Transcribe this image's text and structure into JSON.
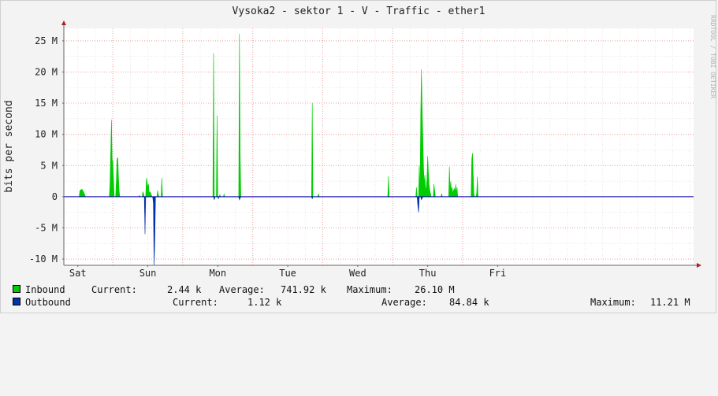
{
  "chart_data": {
    "type": "area",
    "title": "Vysoka2 - sektor 1 - V - Traffic - ether1",
    "ylabel": "bits per second",
    "watermark": "RRDTOOL / TOBI OETIKER",
    "ylim": [
      -11,
      27
    ],
    "yticks": [
      {
        "v": 25,
        "label": "25 M"
      },
      {
        "v": 20,
        "label": "20 M"
      },
      {
        "v": 15,
        "label": "15 M"
      },
      {
        "v": 10,
        "label": "10 M"
      },
      {
        "v": 5,
        "label": "5 M"
      },
      {
        "v": 0,
        "label": "0"
      },
      {
        "v": -5,
        "label": "-5 M"
      },
      {
        "v": -10,
        "label": "-10 M"
      }
    ],
    "xlim": [
      -2.2,
      6.8
    ],
    "xticks": [
      {
        "v": -2,
        "label": "Sat"
      },
      {
        "v": -1,
        "label": "Sun"
      },
      {
        "v": 0,
        "label": "Mon"
      },
      {
        "v": 1,
        "label": "Tue"
      },
      {
        "v": 2,
        "label": "Wed"
      },
      {
        "v": 3,
        "label": "Thu"
      },
      {
        "v": 4,
        "label": "Fri"
      }
    ],
    "grid": true,
    "series": [
      {
        "name": "Inbound",
        "color": "#00cc00",
        "points": [
          [
            -1.98,
            0
          ],
          [
            -1.97,
            1.0
          ],
          [
            -1.94,
            1.2
          ],
          [
            -1.92,
            0.8
          ],
          [
            -1.9,
            0.3
          ],
          [
            -1.89,
            0
          ],
          [
            -1.55,
            0
          ],
          [
            -1.54,
            2.0
          ],
          [
            -1.52,
            12.3
          ],
          [
            -1.51,
            6.0
          ],
          [
            -1.5,
            5.5
          ],
          [
            -1.49,
            3.0
          ],
          [
            -1.48,
            0
          ],
          [
            -1.46,
            0
          ],
          [
            -1.45,
            2.5
          ],
          [
            -1.44,
            6.0
          ],
          [
            -1.43,
            6.3
          ],
          [
            -1.42,
            3.5
          ],
          [
            -1.41,
            1.0
          ],
          [
            -1.4,
            0
          ],
          [
            -1.13,
            0
          ],
          [
            -1.12,
            0.2
          ],
          [
            -1.11,
            0
          ],
          [
            -1.08,
            0
          ],
          [
            -1.07,
            0.8
          ],
          [
            -1.06,
            0.5
          ],
          [
            -1.05,
            0
          ],
          [
            -1.03,
            0
          ],
          [
            -1.02,
            3.0
          ],
          [
            -1.01,
            2.5
          ],
          [
            -1.0,
            1.5
          ],
          [
            -0.99,
            2.0
          ],
          [
            -0.98,
            0.5
          ],
          [
            -0.97,
            0.8
          ],
          [
            -0.96,
            0.6
          ],
          [
            -0.95,
            0.3
          ],
          [
            -0.94,
            0
          ],
          [
            -0.87,
            0
          ],
          [
            -0.86,
            1.0
          ],
          [
            -0.85,
            0.3
          ],
          [
            -0.84,
            0
          ],
          [
            -0.81,
            0
          ],
          [
            -0.8,
            3.0
          ],
          [
            -0.79,
            0
          ],
          [
            -0.07,
            0
          ],
          [
            -0.06,
            23.0
          ],
          [
            -0.05,
            0
          ],
          [
            -0.02,
            0
          ],
          [
            -0.01,
            13.0
          ],
          [
            0.0,
            0
          ],
          [
            0.02,
            0
          ],
          [
            0.03,
            0.3
          ],
          [
            0.04,
            0
          ],
          [
            0.08,
            0
          ],
          [
            0.09,
            0.4
          ],
          [
            0.1,
            0
          ],
          [
            0.3,
            0
          ],
          [
            0.31,
            26.1
          ],
          [
            0.32,
            7.0
          ],
          [
            0.33,
            0
          ],
          [
            1.34,
            0
          ],
          [
            1.35,
            15.0
          ],
          [
            1.36,
            0
          ],
          [
            1.43,
            0
          ],
          [
            1.44,
            0.5
          ],
          [
            1.45,
            0
          ],
          [
            2.43,
            0
          ],
          [
            2.44,
            3.3
          ],
          [
            2.45,
            0
          ],
          [
            2.83,
            0
          ],
          [
            2.84,
            1.5
          ],
          [
            2.85,
            0
          ],
          [
            2.87,
            0
          ],
          [
            2.88,
            5.0
          ],
          [
            2.89,
            0.5
          ],
          [
            2.9,
            13.0
          ],
          [
            2.91,
            20.4
          ],
          [
            2.92,
            15.0
          ],
          [
            2.93,
            10.0
          ],
          [
            2.94,
            5.0
          ],
          [
            2.95,
            2.0
          ],
          [
            2.96,
            3.5
          ],
          [
            2.97,
            1.0
          ],
          [
            2.98,
            1.5
          ],
          [
            2.99,
            3.0
          ],
          [
            3.0,
            6.5
          ],
          [
            3.01,
            4.0
          ],
          [
            3.02,
            2.0
          ],
          [
            3.03,
            1.0
          ],
          [
            3.04,
            0.5
          ],
          [
            3.05,
            0
          ],
          [
            3.08,
            0
          ],
          [
            3.09,
            2.0
          ],
          [
            3.1,
            1.0
          ],
          [
            3.11,
            0
          ],
          [
            3.19,
            0
          ],
          [
            3.2,
            0.5
          ],
          [
            3.21,
            0
          ],
          [
            3.3,
            0
          ],
          [
            3.31,
            4.8
          ],
          [
            3.32,
            1.0
          ],
          [
            3.33,
            2.5
          ],
          [
            3.34,
            0.8
          ],
          [
            3.35,
            1.5
          ],
          [
            3.36,
            0.5
          ],
          [
            3.37,
            1.0
          ],
          [
            3.38,
            1.3
          ],
          [
            3.39,
            0.8
          ],
          [
            3.4,
            2.0
          ],
          [
            3.41,
            0.5
          ],
          [
            3.42,
            1.5
          ],
          [
            3.43,
            0
          ],
          [
            3.62,
            0
          ],
          [
            3.63,
            6.0
          ],
          [
            3.64,
            7.0
          ],
          [
            3.65,
            4.0
          ],
          [
            3.66,
            0.5
          ],
          [
            3.67,
            0
          ],
          [
            3.69,
            0
          ],
          [
            3.7,
            0.5
          ],
          [
            3.71,
            3.2
          ],
          [
            3.72,
            0
          ]
        ]
      },
      {
        "name": "Outbound",
        "color": "#0033aa",
        "points": [
          [
            -1.05,
            0
          ],
          [
            -1.04,
            -6.0
          ],
          [
            -1.03,
            0
          ],
          [
            -0.93,
            0
          ],
          [
            -0.92,
            -1.0
          ],
          [
            -0.91,
            -11.0
          ],
          [
            -0.9,
            -7.0
          ],
          [
            -0.89,
            0
          ],
          [
            -0.06,
            0
          ],
          [
            -0.05,
            -0.5
          ],
          [
            -0.04,
            0
          ],
          [
            0.0,
            0
          ],
          [
            0.01,
            -0.3
          ],
          [
            0.02,
            0
          ],
          [
            0.3,
            0
          ],
          [
            0.31,
            -0.5
          ],
          [
            0.32,
            -0.2
          ],
          [
            0.33,
            0
          ],
          [
            1.34,
            0
          ],
          [
            1.35,
            -0.3
          ],
          [
            1.36,
            0
          ],
          [
            2.85,
            0
          ],
          [
            2.86,
            -1.5
          ],
          [
            2.87,
            -2.5
          ],
          [
            2.88,
            0
          ],
          [
            2.9,
            0
          ],
          [
            2.91,
            -0.5
          ],
          [
            2.92,
            -0.3
          ],
          [
            2.93,
            0
          ]
        ]
      }
    ]
  },
  "legend": {
    "inbound": {
      "name": "Inbound",
      "current_label": "Current:",
      "current_value": "2.44 k",
      "average_label": "Average:",
      "average_value": "741.92 k",
      "maximum_label": "Maximum:",
      "maximum_value": "26.10 M",
      "color": "#00cc00"
    },
    "outbound": {
      "name": "Outbound",
      "current_label": "Current:",
      "current_value": "1.12 k",
      "average_label": "Average:",
      "average_value": "84.84 k",
      "maximum_label": "Maximum:",
      "maximum_value": "11.21 M",
      "color": "#0033aa"
    }
  }
}
